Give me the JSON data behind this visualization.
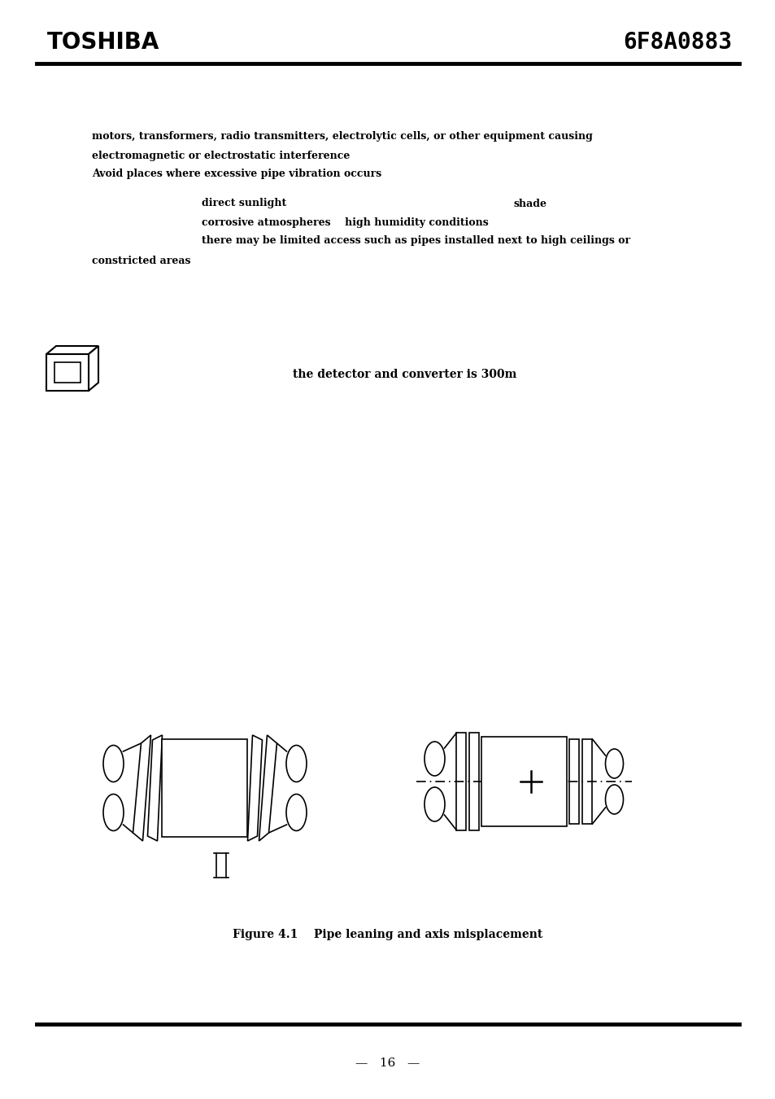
{
  "bg_color": "#ffffff",
  "header_logo": "TOSHIBA",
  "header_code": "6F8A0883",
  "line1": "motors, transformers, radio transmitters, electrolytic cells, or other equipment causing",
  "line2": "electromagnetic or electrostatic interference",
  "line3": "Avoid places where excessive pipe vibration occurs",
  "line4a": "direct sunlight",
  "line4b": "shade",
  "line5": "corrosive atmospheres    high humidity conditions",
  "line6": "there may be limited access such as pipes installed next to high ceilings or",
  "line7": "constricted areas",
  "detector_text": "the detector and converter is 300m",
  "figure_caption": "Figure 4.1    Pipe leaning and axis misplacement",
  "page_number": "16",
  "font_color": "#000000"
}
